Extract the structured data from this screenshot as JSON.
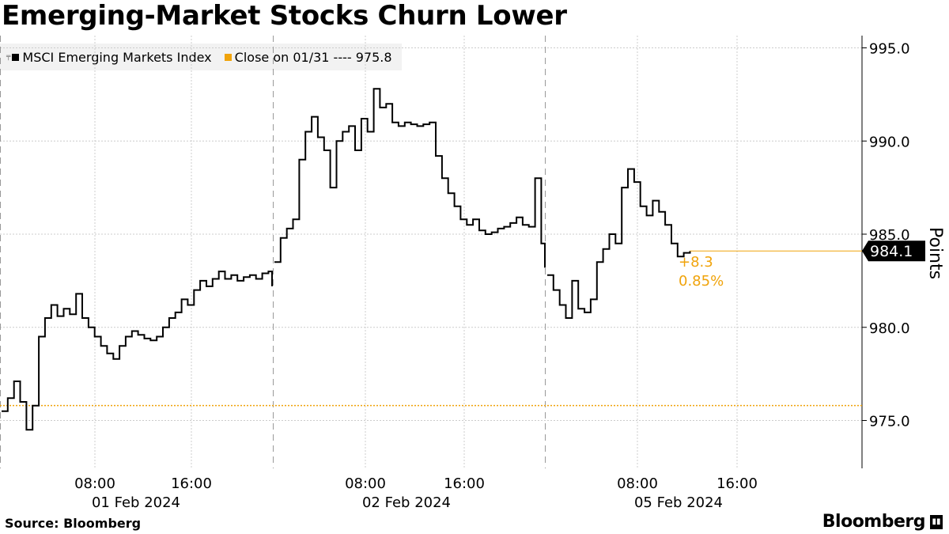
{
  "header": {
    "title": "Emerging-Market Stocks Churn Lower"
  },
  "footer": {
    "source": "Source: Bloomberg",
    "brand": "Bloomberg"
  },
  "legend": {
    "series_label": "MSCI Emerging Markets Index",
    "reference_label": "Close on 01/31 ---- 975.8"
  },
  "colors": {
    "series": "#000000",
    "reference": "#f0a30a",
    "grid": "#cccccc",
    "legend_bg": "#f2f2f2"
  },
  "chart_data": {
    "type": "line",
    "ylabel": "Points",
    "ylim": [
      972.5,
      996
    ],
    "y_ticks": [
      "975.0",
      "980.0",
      "985.0",
      "990.0",
      "995.0"
    ],
    "grid": true,
    "legend_position": "top-left",
    "x_ticks": [
      {
        "time": "08:00",
        "date": "01 Feb 2024"
      },
      {
        "time": "16:00",
        "date": ""
      },
      {
        "time": "08:00",
        "date": "02 Feb 2024"
      },
      {
        "time": "16:00",
        "date": ""
      },
      {
        "time": "08:00",
        "date": "05 Feb 2024"
      },
      {
        "time": "16:00",
        "date": ""
      }
    ],
    "reference_line": {
      "name": "Close on 01/31",
      "value": 975.8
    },
    "last_value_label": "984.1",
    "change": {
      "abs": "+8.3",
      "pct": "0.85%"
    },
    "series": [
      {
        "name": "MSCI Emerging Markets Index",
        "sessions": [
          {
            "day": "01 Feb 2024",
            "x": [
              "00:00",
              "00:30",
              "01:00",
              "01:30",
              "02:00",
              "02:30",
              "03:00",
              "03:30",
              "04:00",
              "04:30",
              "05:00",
              "05:30",
              "06:00",
              "06:30",
              "07:00",
              "07:30",
              "08:00",
              "08:30",
              "09:00",
              "09:30",
              "10:00",
              "10:30",
              "11:00",
              "11:30",
              "12:00",
              "12:30",
              "13:00",
              "13:30",
              "14:00",
              "14:30",
              "15:00",
              "15:30",
              "16:00",
              "16:30",
              "17:00",
              "17:30",
              "18:00",
              "18:30",
              "19:00",
              "19:30",
              "20:00",
              "20:30",
              "21:00",
              "21:30",
              "22:00"
            ],
            "y": [
              975.5,
              976.2,
              977.1,
              976.0,
              974.5,
              975.8,
              979.5,
              980.5,
              981.2,
              980.6,
              981.0,
              980.7,
              981.8,
              980.5,
              980.0,
              979.5,
              979.0,
              978.6,
              978.3,
              979.0,
              979.5,
              979.8,
              979.6,
              979.4,
              979.3,
              979.5,
              980.0,
              980.5,
              980.8,
              981.5,
              981.2,
              982.0,
              982.5,
              982.2,
              982.6,
              983.0,
              982.6,
              982.8,
              982.5,
              982.7,
              982.8,
              982.6,
              982.9,
              983.0,
              982.2
            ]
          },
          {
            "day": "02 Feb 2024",
            "x": [
              "00:00",
              "00:30",
              "01:00",
              "01:30",
              "02:00",
              "02:30",
              "03:00",
              "03:30",
              "04:00",
              "04:30",
              "05:00",
              "05:30",
              "06:00",
              "06:30",
              "07:00",
              "07:30",
              "08:00",
              "08:30",
              "09:00",
              "09:30",
              "10:00",
              "10:30",
              "11:00",
              "11:30",
              "12:00",
              "12:30",
              "13:00",
              "13:30",
              "14:00",
              "14:30",
              "15:00",
              "15:30",
              "16:00",
              "16:30",
              "17:00",
              "17:30",
              "18:00",
              "18:30",
              "19:00",
              "19:30",
              "20:00",
              "20:30",
              "21:00",
              "21:30",
              "22:00"
            ],
            "y": [
              983.5,
              984.8,
              985.3,
              985.8,
              989.0,
              990.5,
              991.3,
              990.2,
              989.5,
              987.5,
              990.0,
              990.5,
              990.8,
              989.5,
              991.2,
              990.5,
              992.8,
              991.8,
              992.0,
              991.0,
              990.8,
              991.0,
              990.9,
              990.8,
              990.9,
              991.0,
              989.2,
              988.0,
              987.2,
              986.5,
              985.8,
              985.5,
              985.8,
              985.2,
              985.0,
              985.1,
              985.3,
              985.4,
              985.6,
              985.9,
              985.5,
              985.4,
              988.0,
              984.5,
              983.2
            ]
          },
          {
            "day": "05 Feb 2024",
            "x": [
              "00:00",
              "00:30",
              "01:00",
              "01:30",
              "02:00",
              "02:30",
              "03:00",
              "03:30",
              "04:00",
              "04:30",
              "05:00",
              "05:30",
              "06:00",
              "06:30",
              "07:00",
              "07:30",
              "08:00",
              "08:30",
              "09:00",
              "09:30",
              "10:00",
              "10:30",
              "11:00",
              "11:30"
            ],
            "y": [
              982.8,
              982.0,
              981.2,
              980.5,
              982.5,
              981.0,
              980.8,
              981.5,
              983.5,
              984.2,
              985.0,
              984.5,
              987.5,
              988.5,
              987.8,
              986.5,
              986.0,
              986.8,
              986.2,
              985.5,
              984.5,
              983.8,
              984.0,
              984.1
            ]
          }
        ]
      }
    ]
  }
}
